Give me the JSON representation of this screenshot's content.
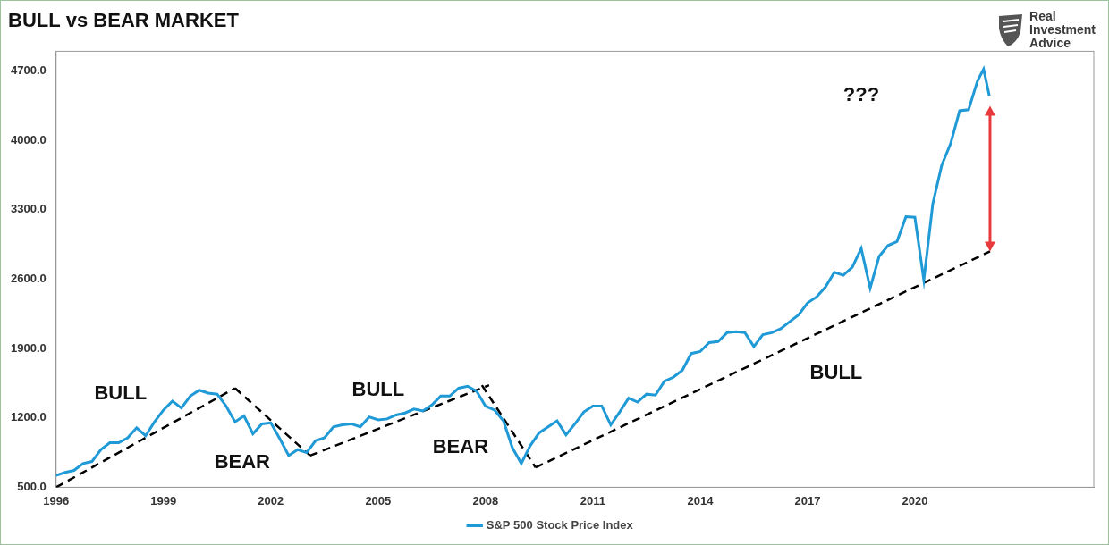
{
  "chart_data": {
    "type": "line",
    "title": "BULL vs BEAR MARKET",
    "logo": "Real Investment Advice",
    "x": [
      1996,
      1996.25,
      1996.5,
      1996.75,
      1997,
      1997.25,
      1997.5,
      1997.75,
      1998,
      1998.25,
      1998.5,
      1998.75,
      1999,
      1999.25,
      1999.5,
      1999.75,
      2000,
      2000.25,
      2000.5,
      2000.75,
      2001,
      2001.25,
      2001.5,
      2001.75,
      2002,
      2002.25,
      2002.5,
      2002.75,
      2003,
      2003.25,
      2003.5,
      2003.75,
      2004,
      2004.25,
      2004.5,
      2004.75,
      2005,
      2005.25,
      2005.5,
      2005.75,
      2006,
      2006.25,
      2006.5,
      2006.75,
      2007,
      2007.25,
      2007.5,
      2007.75,
      2008,
      2008.25,
      2008.5,
      2008.75,
      2009,
      2009.25,
      2009.5,
      2009.75,
      2010,
      2010.25,
      2010.5,
      2010.75,
      2011,
      2011.25,
      2011.5,
      2011.75,
      2012,
      2012.25,
      2012.5,
      2012.75,
      2013,
      2013.25,
      2013.5,
      2013.75,
      2014,
      2014.25,
      2014.5,
      2014.75,
      2015,
      2015.25,
      2015.5,
      2015.75,
      2016,
      2016.25,
      2016.5,
      2016.75,
      2017,
      2017.25,
      2017.5,
      2017.75,
      2018,
      2018.25,
      2018.5,
      2018.75,
      2019,
      2019.25,
      2019.5,
      2019.75,
      2020,
      2020.25,
      2020.5,
      2020.75,
      2021,
      2021.25,
      2021.5,
      2021.75,
      2021.92,
      2022.08
    ],
    "series": [
      {
        "name": "S&P 500 Stock Price Index",
        "color": "#1f9ad6",
        "values": [
          620,
          650,
          670,
          740,
          760,
          880,
          950,
          950,
          1000,
          1100,
          1020,
          1160,
          1280,
          1370,
          1300,
          1420,
          1480,
          1450,
          1440,
          1320,
          1160,
          1220,
          1040,
          1140,
          1150,
          990,
          820,
          880,
          850,
          970,
          1000,
          1110,
          1130,
          1140,
          1110,
          1210,
          1180,
          1190,
          1230,
          1250,
          1290,
          1270,
          1330,
          1420,
          1420,
          1500,
          1520,
          1470,
          1320,
          1280,
          1170,
          900,
          740,
          920,
          1050,
          1110,
          1170,
          1030,
          1140,
          1260,
          1320,
          1320,
          1130,
          1260,
          1400,
          1360,
          1440,
          1430,
          1570,
          1610,
          1680,
          1850,
          1870,
          1960,
          1970,
          2060,
          2070,
          2060,
          1920,
          2040,
          2060,
          2100,
          2170,
          2240,
          2360,
          2420,
          2520,
          2670,
          2640,
          2720,
          2910,
          2510,
          2830,
          2940,
          2980,
          3230,
          3225,
          2590,
          3360,
          3750,
          3970,
          4300,
          4310,
          4600,
          4720,
          4450
        ]
      }
    ],
    "xlim": [
      1996,
      2025
    ],
    "xticks": [
      1996,
      1999,
      2002,
      2005,
      2008,
      2011,
      2014,
      2017,
      2020
    ],
    "ylim": [
      500,
      4900
    ],
    "yticks": [
      {
        "value": 500,
        "label": "500.0"
      },
      {
        "value": 1200,
        "label": "1200.0"
      },
      {
        "value": 1900,
        "label": "1900.0"
      },
      {
        "value": 2600,
        "label": "2600.0"
      },
      {
        "value": 3300,
        "label": "3300.0"
      },
      {
        "value": 4000,
        "label": "4000.0"
      },
      {
        "value": 4700,
        "label": "4700.0"
      }
    ],
    "grid": false,
    "legend": "bottom",
    "trend_lines": [
      {
        "x": [
          1996,
          2001
        ],
        "values": [
          500,
          1500
        ],
        "color": "#000000",
        "line_style": "dashed"
      },
      {
        "x": [
          2001,
          2003.1
        ],
        "values": [
          1500,
          820
        ],
        "color": "#000000",
        "line_style": "dashed"
      },
      {
        "x": [
          2003.1,
          2008.1
        ],
        "values": [
          820,
          1530
        ],
        "color": "#000000",
        "line_style": "dashed"
      },
      {
        "x": [
          2007.9,
          2009.4
        ],
        "values": [
          1530,
          700
        ],
        "color": "#000000",
        "line_style": "dashed"
      },
      {
        "x": [
          2009.4,
          2022.1
        ],
        "values": [
          700,
          2880
        ],
        "color": "#000000",
        "line_style": "dashed"
      }
    ],
    "annotations": [
      {
        "text": "BULL",
        "x": 1997.8,
        "y": 1440
      },
      {
        "text": "BEAR",
        "x": 2001.2,
        "y": 750
      },
      {
        "text": "BULL",
        "x": 2005.0,
        "y": 1480
      },
      {
        "text": "BEAR",
        "x": 2007.3,
        "y": 900
      },
      {
        "text": "BULL",
        "x": 2017.8,
        "y": 1650
      },
      {
        "text": "???",
        "x": 2018.5,
        "y": 4450
      }
    ],
    "arrow": {
      "x": 2022.1,
      "from": 2880,
      "to": 4350,
      "color": "#e8393c"
    }
  }
}
